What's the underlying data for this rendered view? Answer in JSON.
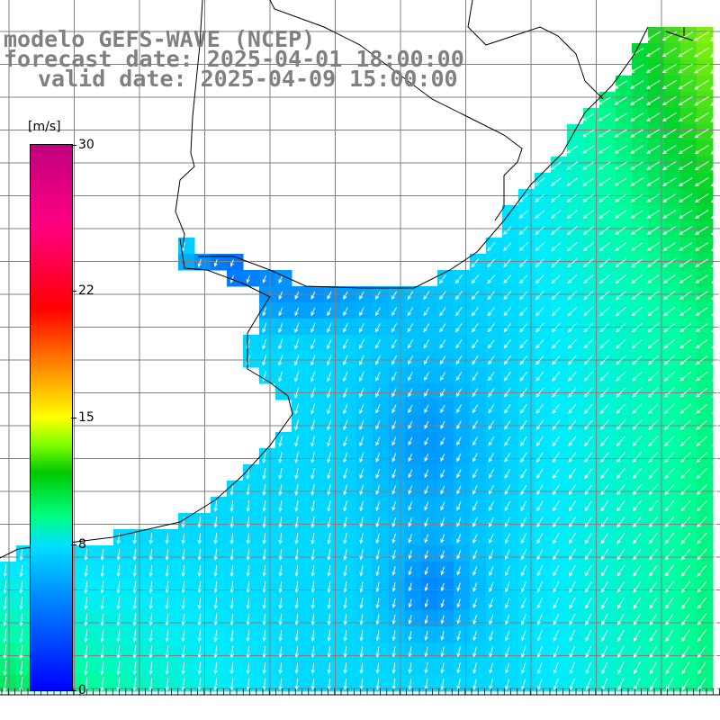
{
  "title": {
    "line1": "modelo GEFS-WAVE (NCEP)",
    "line2": "forecast date: 2025-04-01 18:00:00",
    "line3": "valid date: 2025-04-09 15:00:00"
  },
  "colorbar": {
    "unit": "[m/s]",
    "ticks": [
      {
        "label": "0",
        "value": 0
      },
      {
        "label": "8",
        "value": 8
      },
      {
        "label": "15",
        "value": 15
      },
      {
        "label": "22",
        "value": 22
      },
      {
        "label": "30",
        "value": 30
      }
    ],
    "vmin": 0,
    "vmax": 30
  },
  "map": {
    "field": "wind speed",
    "land_color": "#ffffff",
    "coast_color": "#000000",
    "grid_color": "#808080"
  }
}
